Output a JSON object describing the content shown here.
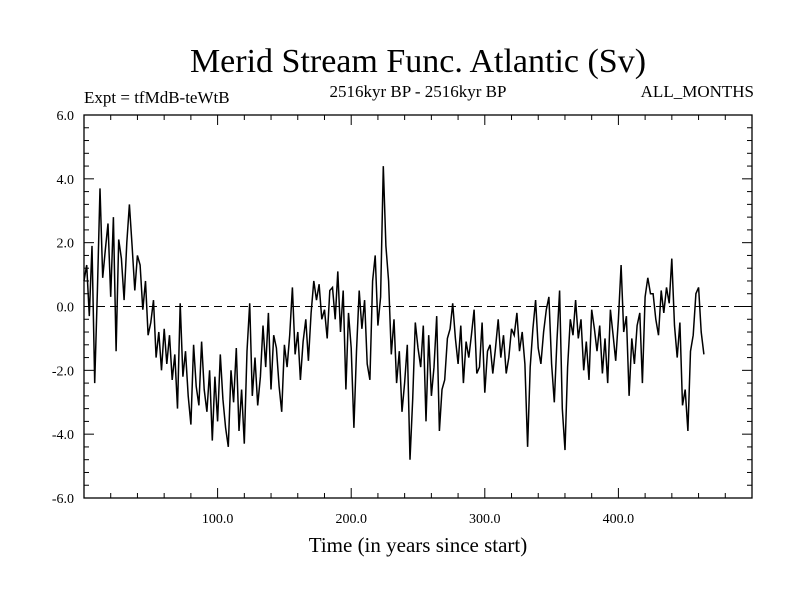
{
  "chart_data": {
    "type": "line",
    "title": "Merid Stream Func. Atlantic (Sv)",
    "subtitle_left": "Expt = tfMdB-teWtB",
    "subtitle_center": "2516kyr BP - 2516kyr BP",
    "subtitle_right": "ALL_MONTHS",
    "xlabel": "Time (in years since start)",
    "ylabel": "",
    "xlim": [
      0,
      500
    ],
    "ylim": [
      -6,
      6
    ],
    "x_ticks": [
      100,
      200,
      300,
      400
    ],
    "x_tick_labels": [
      "100.0",
      "200.0",
      "300.0",
      "400.0"
    ],
    "y_ticks": [
      6,
      4,
      2,
      0,
      -2,
      -4,
      -6
    ],
    "y_tick_labels": [
      "6.0",
      "4.0",
      "2.0",
      "0.0",
      "-2.0",
      "-4.0",
      "-6.0"
    ],
    "reference_line": 0,
    "series": [
      {
        "name": "Merid Stream Func. Atlantic",
        "x_start": 0,
        "x_step": 2,
        "values": [
          0.8,
          1.3,
          -0.3,
          1.9,
          -2.4,
          0.5,
          3.7,
          0.9,
          1.8,
          2.6,
          0.3,
          2.8,
          -1.4,
          2.1,
          1.5,
          0.2,
          2.0,
          3.2,
          1.9,
          0.5,
          1.6,
          1.3,
          -0.1,
          0.8,
          -0.9,
          -0.5,
          0.2,
          -1.6,
          -0.8,
          -2.0,
          -0.7,
          -1.8,
          -0.9,
          -2.3,
          -1.5,
          -3.2,
          0.1,
          -2.2,
          -1.4,
          -2.8,
          -3.7,
          -1.2,
          -2.5,
          -3.1,
          -1.1,
          -2.6,
          -3.3,
          -2.0,
          -4.2,
          -2.2,
          -3.6,
          -1.5,
          -2.9,
          -3.8,
          -4.4,
          -2.0,
          -3.0,
          -1.3,
          -3.9,
          -2.6,
          -4.3,
          -1.4,
          0.1,
          -2.8,
          -1.6,
          -3.1,
          -2.2,
          -0.6,
          -1.9,
          -0.2,
          -2.6,
          -0.9,
          -1.3,
          -2.5,
          -3.3,
          -1.2,
          -1.9,
          -0.9,
          0.6,
          -1.5,
          -0.8,
          -2.3,
          -1.1,
          -0.4,
          -1.7,
          -0.2,
          0.8,
          0.2,
          0.7,
          -0.4,
          -0.1,
          -1.0,
          0.5,
          0.6,
          -0.4,
          1.1,
          -0.8,
          0.5,
          -2.6,
          -0.2,
          -1.3,
          -3.8,
          -1.4,
          0.5,
          -0.7,
          0.2,
          -1.8,
          -2.3,
          0.8,
          1.6,
          -0.6,
          0.3,
          4.4,
          1.9,
          0.8,
          -1.5,
          -0.4,
          -2.4,
          -1.4,
          -3.3,
          -2.4,
          -1.2,
          -4.8,
          -2.9,
          -0.5,
          -1.3,
          -1.9,
          -0.6,
          -3.6,
          -0.9,
          -2.8,
          -1.9,
          -0.3,
          -3.9,
          -2.6,
          -2.3,
          -1.0,
          -0.7,
          0.1,
          -1.0,
          -1.8,
          -0.6,
          -2.4,
          -1.1,
          -1.6,
          -0.9,
          -0.1,
          -2.1,
          -1.9,
          -0.5,
          -2.7,
          -1.4,
          -1.2,
          -2.1,
          -1.3,
          -0.4,
          -1.6,
          -0.9,
          -2.1,
          -1.6,
          -0.7,
          -0.9,
          -0.2,
          -1.4,
          -0.8,
          -1.8,
          -4.4,
          -1.9,
          -0.7,
          0.2,
          -1.3,
          -1.8,
          -0.8,
          -0.1,
          0.3,
          -1.8,
          -3.0,
          -1.1,
          0.5,
          -3.2,
          -4.5,
          -1.9,
          -0.4,
          -0.9,
          0.2,
          -1.0,
          -0.4,
          -2.0,
          -1.1,
          -2.3,
          -0.1,
          -0.7,
          -1.4,
          -0.6,
          -2.1,
          -1.0,
          -2.4,
          -0.1,
          -0.9,
          -1.7,
          -0.4,
          1.3,
          -0.8,
          -0.3,
          -2.8,
          -1.0,
          -1.8,
          -0.6,
          -0.2,
          -2.4,
          0.3,
          0.9,
          0.4,
          0.4,
          -0.4,
          -0.9,
          0.5,
          -0.2,
          0.6,
          0.1,
          1.5,
          -0.6,
          -1.6,
          -0.5,
          -3.1,
          -2.6,
          -3.9,
          -1.4,
          -0.9,
          0.4,
          0.6,
          -0.8,
          -1.5
        ]
      }
    ]
  }
}
